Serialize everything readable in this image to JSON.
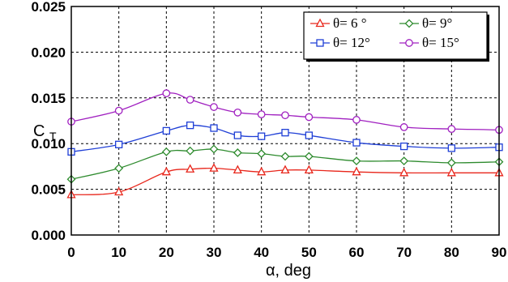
{
  "chart_data": {
    "type": "line",
    "xlabel": "α, deg",
    "ylabel_main": "C",
    "ylabel_sub": "T",
    "xlim": [
      0,
      90
    ],
    "ylim": [
      0,
      0.025
    ],
    "x_ticks": [
      "0",
      "10",
      "20",
      "30",
      "40",
      "50",
      "60",
      "70",
      "80",
      "90"
    ],
    "y_ticks": [
      "0.000",
      "0.005",
      "0.010",
      "0.015",
      "0.020",
      "0.025"
    ],
    "grid": true,
    "legend_position": "top-right",
    "series": [
      {
        "name": "θ= 6 °",
        "color": "#e8261b",
        "marker": "triangle",
        "x": [
          0,
          10,
          20,
          25,
          30,
          35,
          40,
          45,
          50,
          60,
          70,
          80,
          90
        ],
        "y": [
          0.0044,
          0.0047,
          0.0069,
          0.0072,
          0.0073,
          0.0071,
          0.0069,
          0.0071,
          0.0071,
          0.0069,
          0.0068,
          0.0068,
          0.0068
        ]
      },
      {
        "name": "θ= 9°",
        "color": "#2e8b2e",
        "marker": "diamond",
        "x": [
          0,
          10,
          20,
          25,
          30,
          35,
          40,
          45,
          50,
          60,
          70,
          80,
          90
        ],
        "y": [
          0.0061,
          0.0073,
          0.0091,
          0.0092,
          0.0094,
          0.009,
          0.0089,
          0.0086,
          0.0086,
          0.0081,
          0.0081,
          0.0079,
          0.008
        ]
      },
      {
        "name": "θ= 12°",
        "color": "#1f3fd6",
        "marker": "square",
        "x": [
          0,
          10,
          20,
          25,
          30,
          35,
          40,
          45,
          50,
          60,
          70,
          80,
          90
        ],
        "y": [
          0.0091,
          0.0099,
          0.0114,
          0.012,
          0.0117,
          0.0109,
          0.0108,
          0.0112,
          0.0109,
          0.0101,
          0.0097,
          0.0095,
          0.0096
        ]
      },
      {
        "name": "θ= 15°",
        "color": "#a020c0",
        "marker": "circle",
        "x": [
          0,
          10,
          20,
          25,
          30,
          35,
          40,
          45,
          50,
          60,
          70,
          80,
          90
        ],
        "y": [
          0.0124,
          0.0136,
          0.0155,
          0.0148,
          0.014,
          0.0134,
          0.0132,
          0.0131,
          0.0129,
          0.0126,
          0.0118,
          0.0116,
          0.0115
        ]
      }
    ]
  }
}
